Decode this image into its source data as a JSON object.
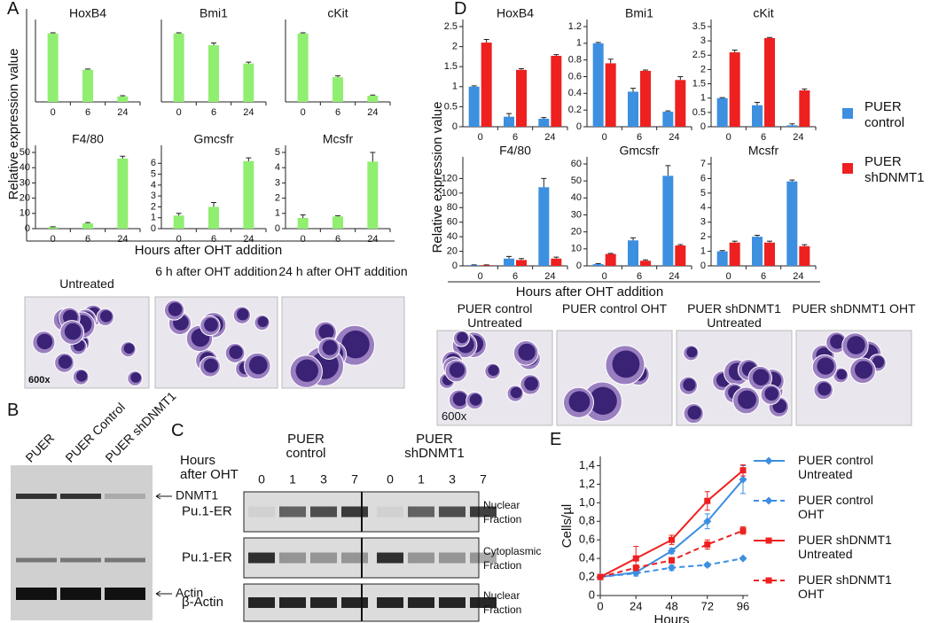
{
  "panel_labels": [
    "A",
    "B",
    "C",
    "D",
    "E"
  ],
  "chart_data": [
    {
      "type": "bar",
      "title": "HoxB4",
      "categories": [
        "0",
        "6",
        "24"
      ],
      "ylim": [
        0,
        1.1
      ],
      "series": [
        {
          "color": "#90ee70",
          "values": [
            1.0,
            0.47,
            0.08
          ],
          "errors": [
            0.01,
            0.01,
            0.01
          ]
        }
      ]
    },
    {
      "type": "bar",
      "title": "Bmi1",
      "categories": [
        "0",
        "6",
        "24"
      ],
      "ylim": [
        0,
        1.1
      ],
      "series": [
        {
          "color": "#90ee70",
          "values": [
            1.0,
            0.83,
            0.56
          ],
          "errors": [
            0.01,
            0.03,
            0.02
          ]
        }
      ]
    },
    {
      "type": "bar",
      "title": "cKit",
      "categories": [
        "0",
        "6",
        "24"
      ],
      "ylim": [
        0,
        1.1
      ],
      "series": [
        {
          "color": "#90ee70",
          "values": [
            1.0,
            0.36,
            0.09
          ],
          "errors": [
            0.01,
            0.02,
            0.01
          ]
        }
      ]
    },
    {
      "type": "bar",
      "title": "F4/80",
      "categories": [
        "0",
        "6",
        "24"
      ],
      "ylim": [
        0,
        50
      ],
      "yticks": [
        0,
        10,
        20,
        30,
        40,
        50
      ],
      "series": [
        {
          "color": "#90ee70",
          "values": [
            1,
            3.5,
            46
          ],
          "errors": [
            0.2,
            0.5,
            1.5
          ]
        }
      ]
    },
    {
      "type": "bar",
      "title": "Gmcsfr",
      "categories": [
        "0",
        "6",
        "24"
      ],
      "ylim": [
        0,
        7
      ],
      "yticks": [
        0,
        1,
        2,
        3,
        4,
        5,
        6
      ],
      "series": [
        {
          "color": "#90ee70",
          "values": [
            1.2,
            2.0,
            6.2
          ],
          "errors": [
            0.2,
            0.4,
            0.3
          ]
        }
      ]
    },
    {
      "type": "bar",
      "title": "Mcsfr",
      "categories": [
        "0",
        "6",
        "24"
      ],
      "ylim": [
        0,
        5
      ],
      "yticks": [
        0,
        1,
        2,
        3,
        4,
        5
      ],
      "series": [
        {
          "color": "#90ee70",
          "values": [
            0.7,
            0.8,
            4.4
          ],
          "errors": [
            0.2,
            0.05,
            0.6
          ]
        }
      ]
    },
    {
      "type": "bar",
      "title": "HoxB4",
      "categories": [
        "0",
        "6",
        "24"
      ],
      "ylim": [
        0,
        2.5
      ],
      "yticks": [
        0,
        0.5,
        1,
        1.5,
        2,
        2.5
      ],
      "series": [
        {
          "color": "#3d8fe0",
          "values": [
            1.0,
            0.25,
            0.2
          ],
          "errors": [
            0.02,
            0.08,
            0.03
          ]
        },
        {
          "color": "#ee2020",
          "values": [
            2.1,
            1.42,
            1.77
          ],
          "errors": [
            0.08,
            0.03,
            0.03
          ]
        }
      ]
    },
    {
      "type": "bar",
      "title": "Bmi1",
      "categories": [
        "0",
        "6",
        "24"
      ],
      "ylim": [
        0,
        1.2
      ],
      "yticks": [
        0,
        0.2,
        0.4,
        0.6,
        0.8,
        1,
        1.2
      ],
      "series": [
        {
          "color": "#3d8fe0",
          "values": [
            1.0,
            0.42,
            0.18
          ],
          "errors": [
            0.01,
            0.04,
            0.01
          ]
        },
        {
          "color": "#ee2020",
          "values": [
            0.76,
            0.67,
            0.56
          ],
          "errors": [
            0.05,
            0.01,
            0.04
          ]
        }
      ]
    },
    {
      "type": "bar",
      "title": "cKit",
      "categories": [
        "0",
        "6",
        "24"
      ],
      "ylim": [
        0,
        3.5
      ],
      "yticks": [
        0,
        0.5,
        1,
        1.5,
        2,
        2.5,
        3,
        3.5
      ],
      "series": [
        {
          "color": "#3d8fe0",
          "values": [
            1.0,
            0.75,
            0.05
          ],
          "errors": [
            0.02,
            0.1,
            0.05
          ]
        },
        {
          "color": "#ee2020",
          "values": [
            2.6,
            3.1,
            1.27
          ],
          "errors": [
            0.08,
            0.02,
            0.05
          ]
        }
      ]
    },
    {
      "type": "bar",
      "title": "F4/80",
      "categories": [
        "0",
        "6",
        "24"
      ],
      "ylim": [
        0,
        140
      ],
      "yticks": [
        0,
        20,
        40,
        60,
        80,
        100,
        120
      ],
      "series": [
        {
          "color": "#3d8fe0",
          "values": [
            1,
            10,
            108
          ],
          "errors": [
            0.3,
            3,
            12
          ]
        },
        {
          "color": "#ee2020",
          "values": [
            1,
            8,
            10
          ],
          "errors": [
            0.3,
            2,
            2
          ]
        }
      ]
    },
    {
      "type": "bar",
      "title": "Gmcsfr",
      "categories": [
        "0",
        "6",
        "24"
      ],
      "ylim": [
        0,
        60
      ],
      "yticks": [
        0,
        10,
        20,
        30,
        40,
        50,
        60
      ],
      "series": [
        {
          "color": "#3d8fe0",
          "values": [
            1,
            15,
            53
          ],
          "errors": [
            0.3,
            1.5,
            6
          ]
        },
        {
          "color": "#ee2020",
          "values": [
            7,
            3,
            12
          ],
          "errors": [
            0.3,
            0.5,
            0.5
          ]
        }
      ]
    },
    {
      "type": "bar",
      "title": "Mcsfr",
      "categories": [
        "0",
        "6",
        "24"
      ],
      "ylim": [
        0,
        7
      ],
      "yticks": [
        0,
        1,
        2,
        3,
        4,
        5,
        6,
        7
      ],
      "series": [
        {
          "color": "#3d8fe0",
          "values": [
            1,
            2,
            5.8
          ],
          "errors": [
            0.05,
            0.1,
            0.1
          ]
        },
        {
          "color": "#ee2020",
          "values": [
            1.6,
            1.6,
            1.35
          ],
          "errors": [
            0.1,
            0.1,
            0.1
          ]
        }
      ]
    },
    {
      "type": "line",
      "x_label": "Hours",
      "y_label": "Cells/µl",
      "x": [
        0,
        24,
        48,
        72,
        96
      ],
      "xlim": [
        0,
        96
      ],
      "xticks": [
        0,
        24,
        48,
        72,
        96
      ],
      "ylim": [
        0,
        1.5
      ],
      "yticks": [
        0,
        {
          "value": 0.2,
          "label": "0,2"
        },
        {
          "value": 0.4,
          "label": "0,4"
        },
        {
          "value": 0.6,
          "label": "0,6"
        },
        {
          "value": 0.8,
          "label": "0,8"
        },
        {
          "value": 1.0,
          "label": "1,0"
        },
        {
          "value": 1.2,
          "label": "1,2"
        },
        {
          "value": 1.4,
          "label": "1,4"
        }
      ],
      "series": [
        {
          "name": "PUER control Untreated",
          "color": "#3d8fe0",
          "dashed": false,
          "marker": "diamond",
          "values": [
            0.2,
            0.25,
            0.48,
            0.8,
            1.25
          ],
          "errors": [
            0.02,
            0.04,
            0.03,
            0.08,
            0.15
          ]
        },
        {
          "name": "PUER control OHT",
          "color": "#3d8fe0",
          "dashed": true,
          "marker": "diamond",
          "values": [
            0.2,
            0.24,
            0.3,
            0.33,
            0.4
          ],
          "errors": [
            0.02,
            0.03,
            0.03,
            0.02,
            0.01
          ]
        },
        {
          "name": "PUER shDNMT1 Untreated",
          "color": "#ee2020",
          "dashed": false,
          "marker": "square",
          "values": [
            0.2,
            0.4,
            0.6,
            1.02,
            1.35
          ],
          "errors": [
            0.02,
            0.13,
            0.05,
            0.1,
            0.06
          ]
        },
        {
          "name": "PUER shDNMT1 OHT",
          "color": "#ee2020",
          "dashed": true,
          "marker": "square",
          "values": [
            0.2,
            0.3,
            0.38,
            0.55,
            0.7
          ],
          "errors": [
            0.02,
            0.03,
            0.03,
            0.05,
            0.04
          ]
        }
      ]
    }
  ],
  "panel_a": {
    "y_label": "Relative expression value",
    "x_label": "Hours after OHT addition",
    "images": [
      "Untreated",
      "6 h after OHT addition",
      "24 h after OHT addition"
    ],
    "magnification": "600x"
  },
  "panel_d": {
    "y_label": "Relative expression value",
    "x_label": "Hours after OHT addition",
    "legend": [
      {
        "name": "PUER control",
        "color": "#3d8fe0"
      },
      {
        "name": "PUER shDNMT1",
        "color": "#ee2020"
      }
    ],
    "images": [
      "PUER control Untreated",
      "PUER control OHT",
      "PUER shDNMT1 Untreated",
      "PUER shDNMT1 OHT"
    ],
    "magnification": "600x"
  },
  "panel_b": {
    "lanes": [
      "PUER",
      "PUER Control",
      "PUER shDNMT1"
    ],
    "bands": [
      "DNMT1",
      "Actin"
    ]
  },
  "panel_c": {
    "hours_label": "Hours after OHT",
    "groups": [
      "PUER control",
      "PUER shDNMT1"
    ],
    "lanes": [
      0,
      1,
      3,
      7,
      0,
      1,
      3,
      7
    ],
    "rows": [
      {
        "protein": "Pu.1-ER",
        "fraction": "Nuclear Fraction"
      },
      {
        "protein": "Pu.1-ER",
        "fraction": "Cytoplasmic Fraction"
      },
      {
        "protein": "β-Actin",
        "fraction": "Nuclear Fraction"
      }
    ]
  }
}
